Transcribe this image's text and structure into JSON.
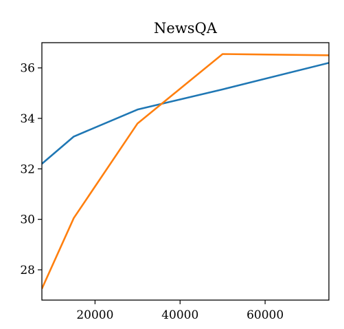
{
  "chart_data": {
    "type": "line",
    "title": "NewsQA",
    "xlabel": "",
    "ylabel": "",
    "xlim": [
      7500,
      75000
    ],
    "ylim": [
      26.8,
      37.0
    ],
    "x_ticks": [
      20000,
      40000,
      60000
    ],
    "y_ticks": [
      28,
      30,
      32,
      34,
      36
    ],
    "grid": false,
    "legend": "none",
    "series": [
      {
        "color": "#1f77b4",
        "points": [
          [
            7500,
            32.2
          ],
          [
            15000,
            33.28
          ],
          [
            30000,
            34.35
          ],
          [
            50000,
            35.15
          ],
          [
            75000,
            36.2
          ]
        ]
      },
      {
        "color": "#ff7f0e",
        "points": [
          [
            7500,
            27.25
          ],
          [
            15000,
            30.05
          ],
          [
            30000,
            33.8
          ],
          [
            50000,
            36.55
          ],
          [
            75000,
            36.5
          ]
        ]
      }
    ]
  }
}
